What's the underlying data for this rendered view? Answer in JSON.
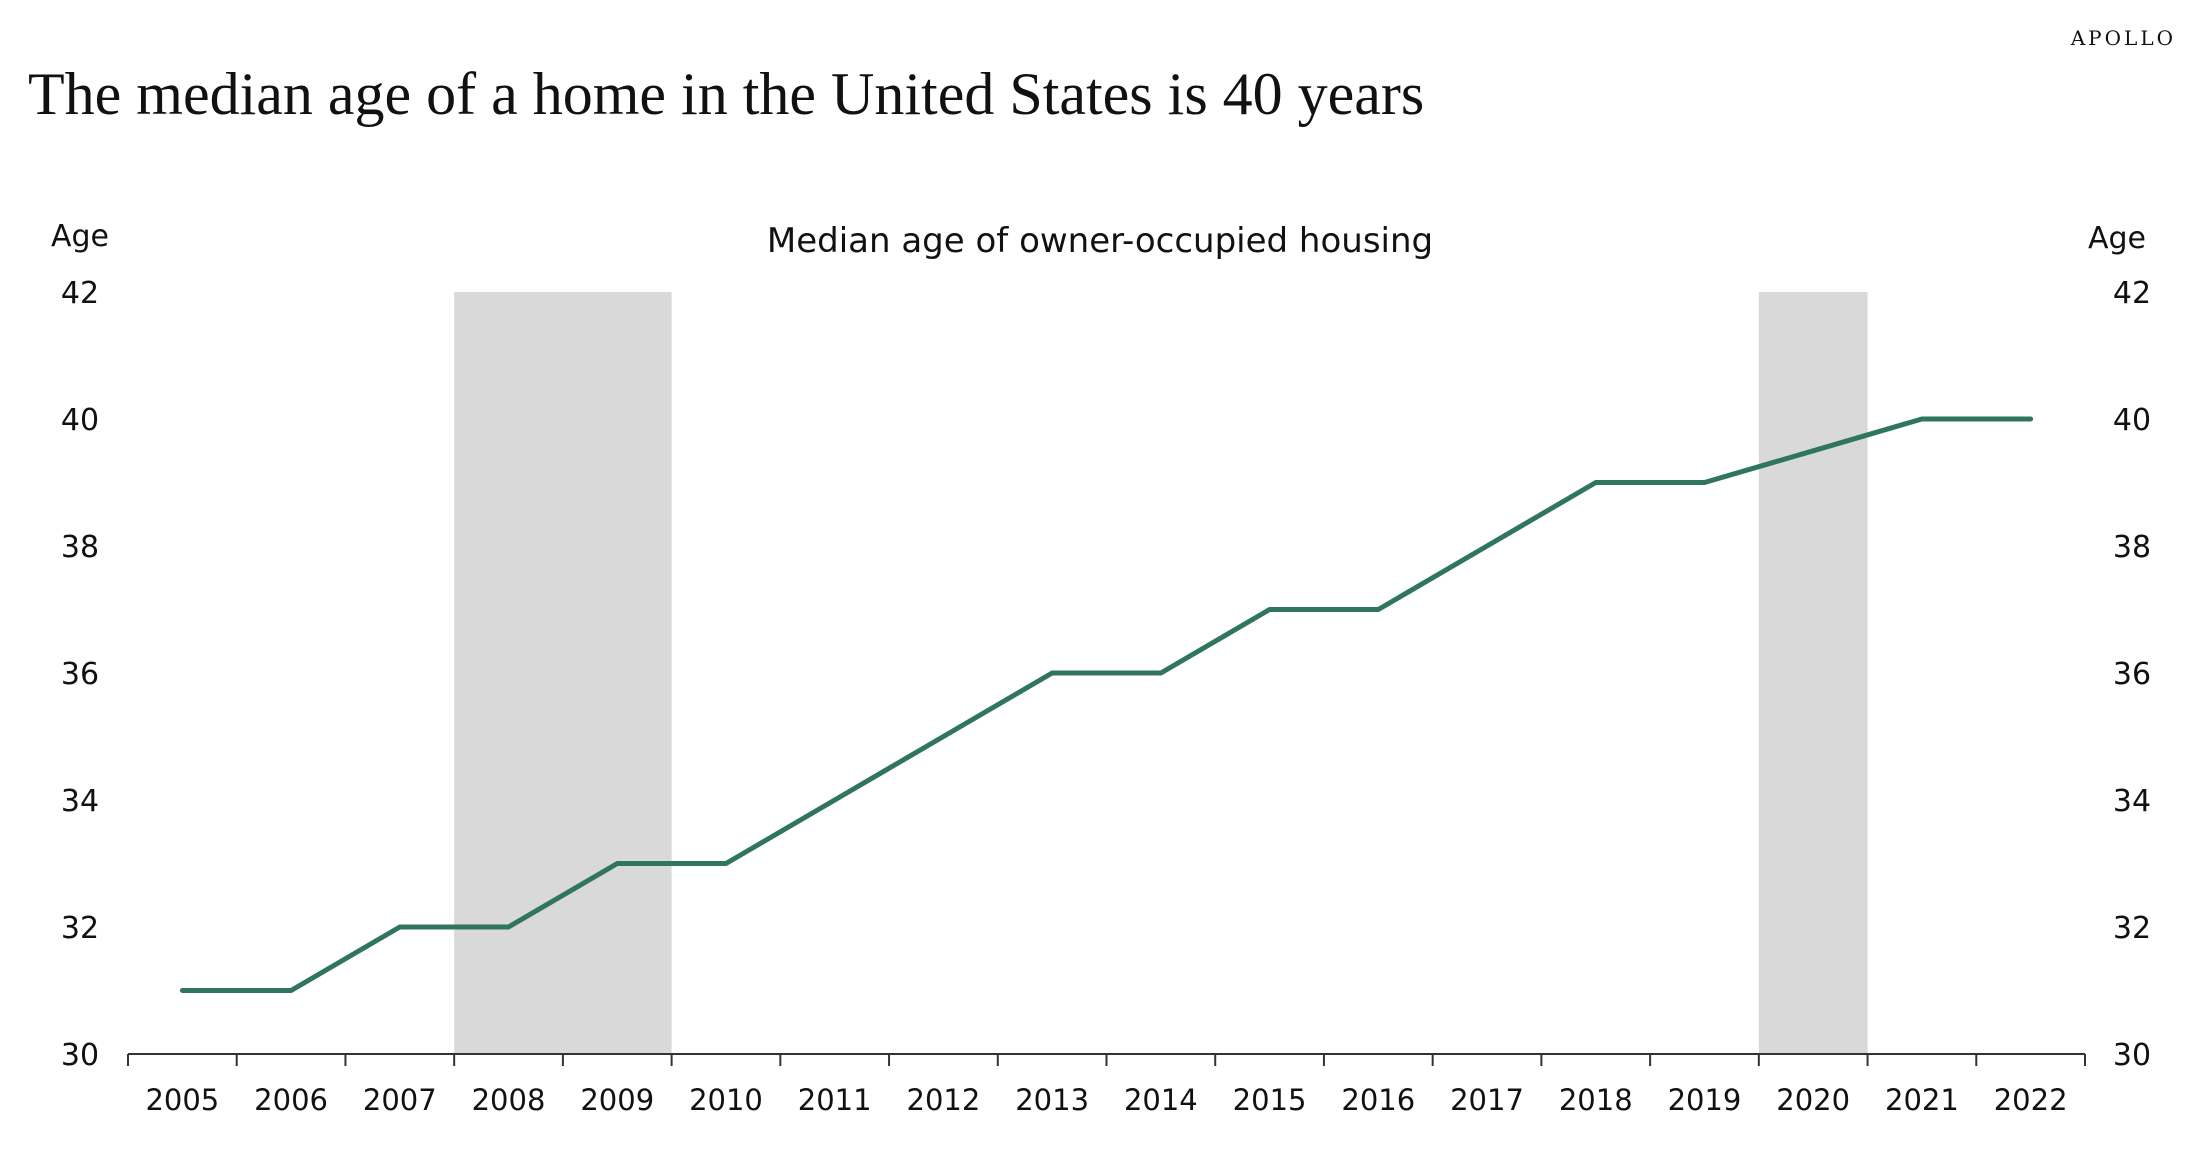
{
  "brand": "APOLLO",
  "headline": "The median age of a home in the United States is 40 years",
  "colors": {
    "line": "#2f7562",
    "recession": "#d9d9d9",
    "axis": "#333333"
  },
  "chart_data": {
    "type": "line",
    "title": "Median age of owner-occupied housing",
    "ylabel_left": "Age",
    "ylabel_right": "Age",
    "x": [
      "2005",
      "2006",
      "2007",
      "2008",
      "2009",
      "2010",
      "2011",
      "2012",
      "2013",
      "2014",
      "2015",
      "2016",
      "2017",
      "2018",
      "2019",
      "2020",
      "2021",
      "2022"
    ],
    "series": [
      {
        "values": [
          31,
          31,
          32,
          32,
          33,
          33,
          34,
          35,
          36,
          36,
          37,
          37,
          38,
          39,
          39,
          39.5,
          40,
          40
        ]
      }
    ],
    "ylim": [
      30,
      42
    ],
    "yticks": [
      30,
      32,
      34,
      36,
      38,
      40,
      42
    ],
    "recession_bands": [
      {
        "start": "2008",
        "end": "2009"
      },
      {
        "start": "2020",
        "end": "2020"
      }
    ],
    "grid": false,
    "legend": "none"
  }
}
